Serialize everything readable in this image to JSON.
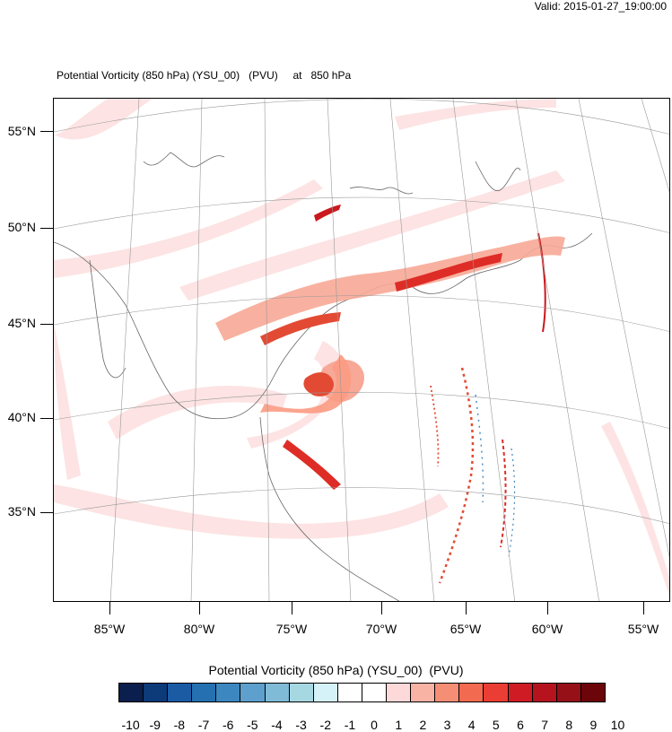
{
  "header": {
    "valid": "Valid: 2015-01-27_19:00:00",
    "title": "Potential Vorticity (850 hPa) (YSU_00)   (PVU)     at   850 hPa"
  },
  "map": {
    "lat_labels": [
      "55°N",
      "50°N",
      "45°N",
      "40°N",
      "35°N"
    ],
    "lon_labels": [
      "85°W",
      "80°W",
      "75°W",
      "70°W",
      "65°W",
      "60°W",
      "55°W"
    ]
  },
  "colorbar": {
    "title": "Potential Vorticity (850 hPa) (YSU_00)  (PVU)",
    "colors": [
      "#0a1f4d",
      "#0d3a78",
      "#1a5ba4",
      "#2470b0",
      "#3d87c0",
      "#5da0cd",
      "#7fbbd7",
      "#a6d8e2",
      "#d5f2f8",
      "#ffffff",
      "#ffffff",
      "#fdd9d9",
      "#f8b3a5",
      "#f68e75",
      "#f26a50",
      "#ea3d33",
      "#cf1c24",
      "#b5141e",
      "#961018",
      "#6c0509"
    ],
    "labels": [
      "-10",
      "-9",
      "-8",
      "-7",
      "-6",
      "-5",
      "-4",
      "-3",
      "-2",
      "-1",
      "0",
      "1",
      "2",
      "3",
      "4",
      "5",
      "6",
      "7",
      "8",
      "9",
      "10"
    ]
  }
}
